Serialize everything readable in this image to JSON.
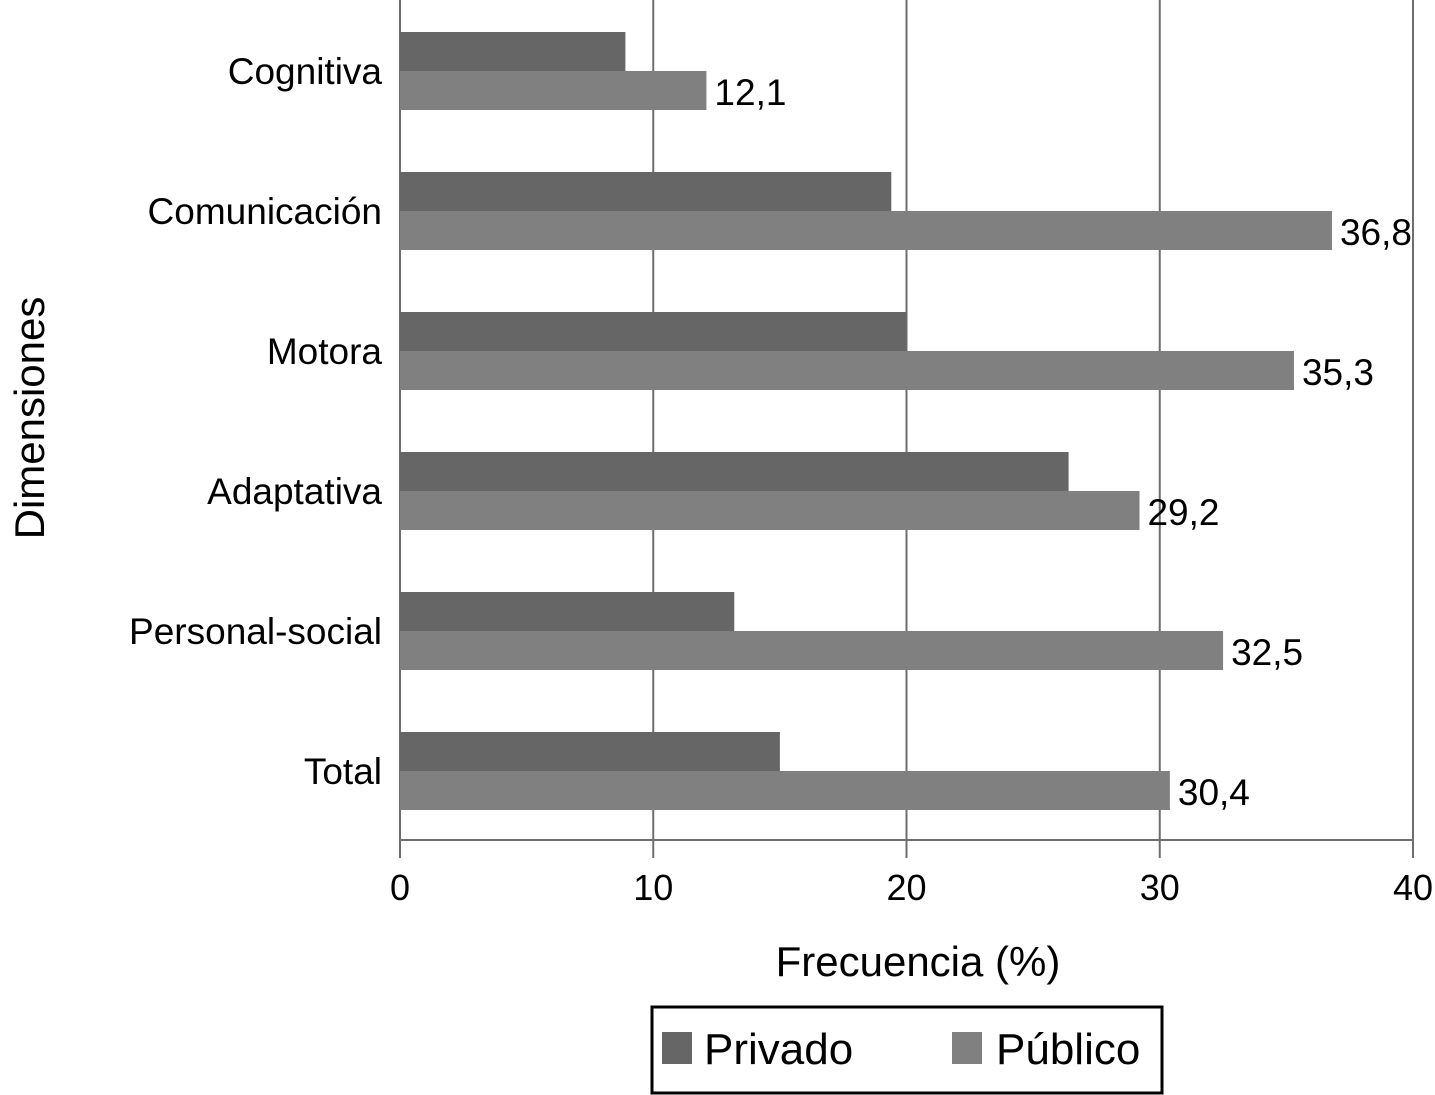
{
  "chart_data": {
    "type": "bar",
    "orientation": "horizontal",
    "title": "",
    "xlabel": "Frecuencia (%)",
    "ylabel": "Dimensiones",
    "xlim": [
      0,
      40
    ],
    "xticks": [
      "0",
      "10",
      "20",
      "30",
      "40"
    ],
    "grid": true,
    "legend_position": "bottom",
    "categories": [
      "Cognitiva",
      "Comunicación",
      "Motora",
      "Adaptativa",
      "Personal-social",
      "Total"
    ],
    "series": [
      {
        "name": "Privado",
        "color": "#666666",
        "values": [
          8.9,
          19.4,
          20.0,
          26.4,
          13.2,
          15.0
        ],
        "labels": [
          "",
          "",
          "",
          "",
          "",
          ""
        ]
      },
      {
        "name": "Público",
        "color": "#808080",
        "values": [
          12.1,
          36.8,
          35.3,
          29.2,
          32.5,
          30.4
        ],
        "labels": [
          "12,1",
          "36,8",
          "35,3",
          "29,2",
          "32,5",
          "30,4"
        ]
      }
    ]
  }
}
